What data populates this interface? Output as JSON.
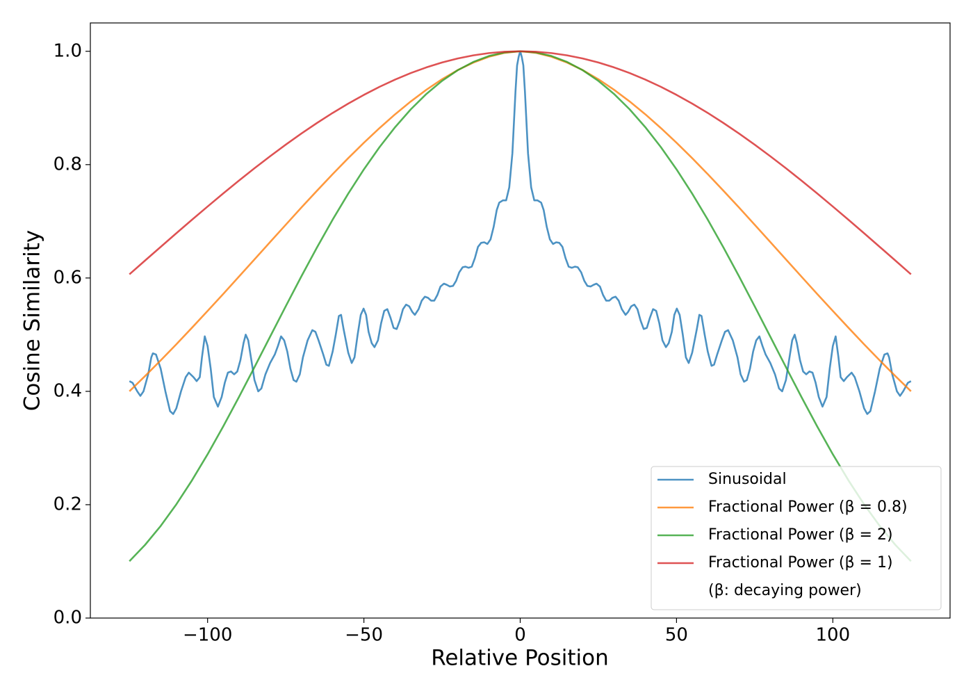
{
  "chart_data": {
    "type": "line",
    "xlabel": "Relative Position",
    "ylabel": "Cosine Similarity",
    "xlim": [
      -137.5,
      137.5
    ],
    "ylim": [
      0,
      1.05
    ],
    "xticks": [
      {
        "value": -100,
        "label": "−100"
      },
      {
        "value": -50,
        "label": "−50"
      },
      0,
      50,
      100
    ],
    "yticks": [
      {
        "value": 0,
        "label": "0.0"
      },
      0.2,
      0.4,
      0.6,
      0.8,
      {
        "value": 1,
        "label": "1.0"
      }
    ],
    "grid": false,
    "legend_loc": "lower right",
    "legend_note": "(β: decaying power)",
    "series": [
      {
        "name": "Sinusoidal",
        "color": "#1f77b4",
        "x": [
          -125,
          -124,
          -122.5,
          -121.5,
          -120.5,
          -119,
          -118,
          -117.5,
          -116.5,
          -115,
          -113.5,
          -112,
          -111,
          -110,
          -108.5,
          -107,
          -106,
          -104.5,
          -103.5,
          -102.5,
          -101.8,
          -100.9,
          -100,
          -99,
          -98,
          -96.7,
          -95.5,
          -94.5,
          -93.5,
          -92.5,
          -91.5,
          -90.5,
          -89.5,
          -88.5,
          -87.8,
          -87,
          -86,
          -85,
          -83.8,
          -82.8,
          -81.5,
          -80,
          -78.5,
          -77.5,
          -76.5,
          -75.5,
          -74.5,
          -73.5,
          -72.5,
          -71.6,
          -70.5,
          -69.5,
          -68,
          -66.5,
          -65.5,
          -64.5,
          -63,
          -62,
          -61.2,
          -60,
          -59,
          -58,
          -57.3,
          -56.5,
          -55,
          -53.9,
          -53,
          -52,
          -51,
          -50.1,
          -49.3,
          -48.5,
          -47.5,
          -46.6,
          -45.5,
          -44.5,
          -43.5,
          -42.5,
          -41.5,
          -40.5,
          -39.5,
          -38.5,
          -37.5,
          -36.5,
          -35.5,
          -34.5,
          -33.7,
          -32.5,
          -31.5,
          -30.5,
          -29.5,
          -28.5,
          -27.5,
          -26.5,
          -25.5,
          -24.4,
          -23.5,
          -22.5,
          -21.5,
          -20.5,
          -19.5,
          -18.4,
          -17.5,
          -16.5,
          -15.5,
          -14.5,
          -13.5,
          -12.5,
          -11.5,
          -10.5,
          -9.5,
          -8.5,
          -7.5,
          -6.7,
          -5.5,
          -4.5,
          -3.5,
          -2.5,
          -1.5,
          -1,
          -0.5,
          0,
          0.5,
          1,
          1.5,
          2.5,
          3.5,
          4.5,
          5.5,
          6.7,
          7.5,
          8.5,
          9.5,
          10.5,
          11.5,
          12.5,
          13.5,
          14.5,
          15.5,
          16.5,
          17.5,
          18.4,
          19.5,
          20.5,
          21.5,
          22.5,
          23.5,
          24.4,
          25.5,
          26.5,
          27.5,
          28.5,
          29.5,
          30.5,
          31.5,
          32.5,
          33.7,
          34.5,
          35.5,
          36.5,
          37.5,
          38.5,
          39.5,
          40.5,
          41.5,
          42.5,
          43.5,
          44.5,
          45.5,
          46.6,
          47.5,
          48.5,
          49.3,
          50.1,
          51,
          52,
          53,
          53.9,
          55,
          56.5,
          57.3,
          58,
          59,
          60,
          61.2,
          62,
          63,
          64.5,
          65.5,
          66.5,
          68,
          69.5,
          70.5,
          71.6,
          72.5,
          73.5,
          74.5,
          75.5,
          76.5,
          77.5,
          78.5,
          80,
          81.5,
          82.8,
          83.8,
          85,
          86,
          87,
          87.8,
          88.5,
          89.5,
          90.5,
          91.5,
          92.5,
          93.5,
          94.5,
          95.5,
          96.7,
          98,
          99,
          100,
          100.9,
          101.8,
          102.5,
          103.5,
          104.5,
          106,
          107,
          108.5,
          110,
          111,
          112,
          113.5,
          115,
          116.5,
          117.5,
          118,
          119,
          120.5,
          121.5,
          122.5,
          124,
          125
        ],
        "values": [
          0.418,
          0.415,
          0.4,
          0.392,
          0.4,
          0.43,
          0.46,
          0.467,
          0.465,
          0.44,
          0.4,
          0.365,
          0.36,
          0.37,
          0.4,
          0.425,
          0.433,
          0.425,
          0.418,
          0.425,
          0.46,
          0.497,
          0.48,
          0.44,
          0.39,
          0.373,
          0.39,
          0.415,
          0.433,
          0.435,
          0.43,
          0.435,
          0.455,
          0.485,
          0.5,
          0.49,
          0.455,
          0.42,
          0.4,
          0.405,
          0.43,
          0.45,
          0.465,
          0.48,
          0.497,
          0.49,
          0.47,
          0.44,
          0.42,
          0.417,
          0.43,
          0.46,
          0.49,
          0.508,
          0.505,
          0.49,
          0.465,
          0.447,
          0.445,
          0.47,
          0.5,
          0.533,
          0.535,
          0.51,
          0.468,
          0.45,
          0.46,
          0.5,
          0.535,
          0.546,
          0.535,
          0.505,
          0.485,
          0.478,
          0.49,
          0.52,
          0.542,
          0.545,
          0.53,
          0.512,
          0.51,
          0.525,
          0.545,
          0.553,
          0.55,
          0.54,
          0.535,
          0.545,
          0.56,
          0.567,
          0.565,
          0.56,
          0.56,
          0.57,
          0.585,
          0.59,
          0.588,
          0.585,
          0.586,
          0.595,
          0.61,
          0.619,
          0.62,
          0.618,
          0.62,
          0.635,
          0.655,
          0.662,
          0.663,
          0.66,
          0.668,
          0.69,
          0.72,
          0.733,
          0.737,
          0.737,
          0.76,
          0.82,
          0.93,
          0.975,
          0.99,
          1.0,
          0.99,
          0.975,
          0.93,
          0.82,
          0.76,
          0.737,
          0.737,
          0.733,
          0.72,
          0.69,
          0.668,
          0.66,
          0.663,
          0.662,
          0.655,
          0.635,
          0.62,
          0.618,
          0.62,
          0.619,
          0.61,
          0.595,
          0.586,
          0.585,
          0.588,
          0.59,
          0.585,
          0.57,
          0.56,
          0.56,
          0.565,
          0.567,
          0.56,
          0.545,
          0.535,
          0.54,
          0.55,
          0.553,
          0.545,
          0.525,
          0.51,
          0.512,
          0.53,
          0.545,
          0.542,
          0.52,
          0.49,
          0.478,
          0.485,
          0.505,
          0.535,
          0.546,
          0.535,
          0.5,
          0.46,
          0.45,
          0.468,
          0.51,
          0.535,
          0.533,
          0.5,
          0.47,
          0.445,
          0.447,
          0.465,
          0.49,
          0.505,
          0.508,
          0.49,
          0.46,
          0.43,
          0.417,
          0.42,
          0.44,
          0.47,
          0.49,
          0.497,
          0.48,
          0.465,
          0.45,
          0.43,
          0.405,
          0.4,
          0.42,
          0.455,
          0.49,
          0.5,
          0.485,
          0.455,
          0.435,
          0.43,
          0.435,
          0.433,
          0.415,
          0.39,
          0.373,
          0.39,
          0.44,
          0.48,
          0.497,
          0.46,
          0.425,
          0.418,
          0.425,
          0.433,
          0.425,
          0.4,
          0.37,
          0.36,
          0.365,
          0.4,
          0.44,
          0.465,
          0.467,
          0.46,
          0.43,
          0.4,
          0.392,
          0.4,
          0.415,
          0.418
        ]
      },
      {
        "name": "Fractional Power (β = 0.8)",
        "color": "#ff7f0e",
        "x": [
          -125,
          -120,
          -115,
          -110,
          -105,
          -100,
          -95,
          -90,
          -85,
          -80,
          -75,
          -70,
          -65,
          -60,
          -55,
          -50,
          -45,
          -40,
          -35,
          -30,
          -25,
          -20,
          -15,
          -10,
          -5,
          0,
          5,
          10,
          15,
          20,
          25,
          30,
          35,
          40,
          45,
          50,
          55,
          60,
          65,
          70,
          75,
          80,
          85,
          90,
          95,
          100,
          105,
          110,
          115,
          120,
          125
        ],
        "values": [
          0.4001,
          0.4269,
          0.4546,
          0.483,
          0.5122,
          0.5418,
          0.5718,
          0.6022,
          0.6328,
          0.6634,
          0.6939,
          0.7243,
          0.754,
          0.7832,
          0.8115,
          0.8386,
          0.8645,
          0.8889,
          0.9115,
          0.9322,
          0.9507,
          0.9668,
          0.98,
          0.9903,
          0.9972,
          1.0,
          0.9972,
          0.9903,
          0.98,
          0.9668,
          0.9507,
          0.9322,
          0.9115,
          0.8889,
          0.8645,
          0.8386,
          0.8115,
          0.7832,
          0.754,
          0.7243,
          0.6939,
          0.6634,
          0.6328,
          0.6022,
          0.5718,
          0.5418,
          0.5122,
          0.483,
          0.4546,
          0.4269,
          0.4001
        ]
      },
      {
        "name": "Fractional Power (β = 2)",
        "color": "#2ca02c",
        "x": [
          -125,
          -120,
          -115,
          -110,
          -105,
          -100,
          -95,
          -90,
          -85,
          -80,
          -75,
          -70,
          -65,
          -60,
          -55,
          -50,
          -45,
          -40,
          -35,
          -30,
          -25,
          -20,
          -15,
          -10,
          -5,
          0,
          5,
          10,
          15,
          20,
          25,
          30,
          35,
          40,
          45,
          50,
          55,
          60,
          65,
          70,
          75,
          80,
          85,
          90,
          95,
          100,
          105,
          110,
          115,
          120,
          125
        ],
        "values": [
          0.1003,
          0.1291,
          0.1625,
          0.2006,
          0.2429,
          0.2889,
          0.3381,
          0.3896,
          0.4427,
          0.4965,
          0.5501,
          0.6029,
          0.654,
          0.7029,
          0.7489,
          0.7917,
          0.8309,
          0.8662,
          0.8976,
          0.9248,
          0.9478,
          0.9666,
          0.9812,
          0.9917,
          0.9979,
          1.0,
          0.9979,
          0.9917,
          0.9812,
          0.9666,
          0.9478,
          0.9248,
          0.8976,
          0.8662,
          0.8309,
          0.7917,
          0.7489,
          0.7029,
          0.654,
          0.6029,
          0.5501,
          0.4965,
          0.4427,
          0.3896,
          0.3381,
          0.2889,
          0.2429,
          0.2006,
          0.1625,
          0.1291,
          0.1003
        ]
      },
      {
        "name": "Fractional Power (β = 1)",
        "color": "#d62728",
        "x": [
          -125,
          -120,
          -115,
          -110,
          -105,
          -100,
          -95,
          -90,
          -85,
          -80,
          -75,
          -70,
          -65,
          -60,
          -55,
          -50,
          -45,
          -40,
          -35,
          -30,
          -25,
          -20,
          -15,
          -10,
          -5,
          0,
          5,
          10,
          15,
          20,
          25,
          30,
          35,
          40,
          45,
          50,
          55,
          60,
          65,
          70,
          75,
          80,
          85,
          90,
          95,
          100,
          105,
          110,
          115,
          120,
          125
        ],
        "values": [
          0.6065,
          0.6308,
          0.6549,
          0.6789,
          0.7027,
          0.7261,
          0.7492,
          0.7717,
          0.7936,
          0.8148,
          0.8353,
          0.8549,
          0.8735,
          0.8912,
          0.9077,
          0.9231,
          0.9373,
          0.9501,
          0.9616,
          0.9716,
          0.9802,
          0.9873,
          0.9928,
          0.9968,
          0.9992,
          1.0,
          0.9992,
          0.9968,
          0.9928,
          0.9873,
          0.9802,
          0.9716,
          0.9616,
          0.9501,
          0.9373,
          0.9231,
          0.9077,
          0.8912,
          0.8735,
          0.8549,
          0.8353,
          0.8148,
          0.7936,
          0.7717,
          0.7492,
          0.7261,
          0.7027,
          0.6789,
          0.6549,
          0.6308,
          0.6065
        ]
      }
    ]
  }
}
